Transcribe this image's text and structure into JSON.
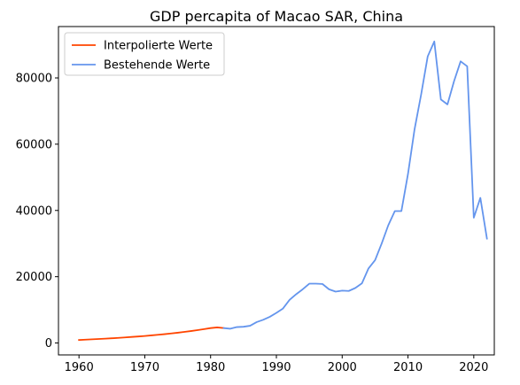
{
  "chart_data": {
    "type": "line",
    "title": "GDP percapita of Macao SAR, China",
    "xlabel": "",
    "ylabel": "",
    "xlim": [
      1956.88,
      2023.12
    ],
    "ylim": [
      -3600,
      95500
    ],
    "x_ticks": [
      1960,
      1970,
      1980,
      1990,
      2000,
      2010,
      2020,
      2030
    ],
    "y_ticks": [
      0,
      20000,
      40000,
      60000,
      80000
    ],
    "grid": false,
    "legend_position": "top-left",
    "series": [
      {
        "name": "Interpolierte Werte",
        "color": "#ff4500",
        "x": [
          1960,
          1961,
          1962,
          1963,
          1964,
          1965,
          1966,
          1967,
          1968,
          1969,
          1970,
          1971,
          1972,
          1973,
          1974,
          1975,
          1976,
          1977,
          1978,
          1979,
          1980,
          1981,
          1982
        ],
        "y": [
          900,
          1000,
          1100,
          1200,
          1300,
          1420,
          1550,
          1680,
          1820,
          1960,
          2120,
          2290,
          2470,
          2660,
          2870,
          3100,
          3340,
          3600,
          3880,
          4180,
          4500,
          4700,
          4500
        ]
      },
      {
        "name": "Bestehende Werte",
        "color": "#6495ed",
        "x": [
          1982,
          1983,
          1984,
          1985,
          1986,
          1987,
          1988,
          1989,
          1990,
          1991,
          1992,
          1993,
          1994,
          1995,
          1996,
          1997,
          1998,
          1999,
          2000,
          2001,
          2002,
          2003,
          2004,
          2005,
          2006,
          2007,
          2008,
          2009,
          2010,
          2011,
          2012,
          2013,
          2014,
          2015,
          2016,
          2017,
          2018,
          2019,
          2020,
          2021,
          2022
        ],
        "y": [
          4500,
          4300,
          4800,
          4900,
          5200,
          6300,
          7000,
          7900,
          9100,
          10400,
          13000,
          14700,
          16200,
          17900,
          17900,
          17800,
          16200,
          15500,
          15800,
          15700,
          16600,
          18000,
          22500,
          25000,
          30000,
          35500,
          39800,
          39800,
          51000,
          64500,
          75000,
          86500,
          91000,
          73500,
          72000,
          79000,
          85000,
          83500,
          37800,
          43800,
          31500
        ]
      }
    ]
  }
}
